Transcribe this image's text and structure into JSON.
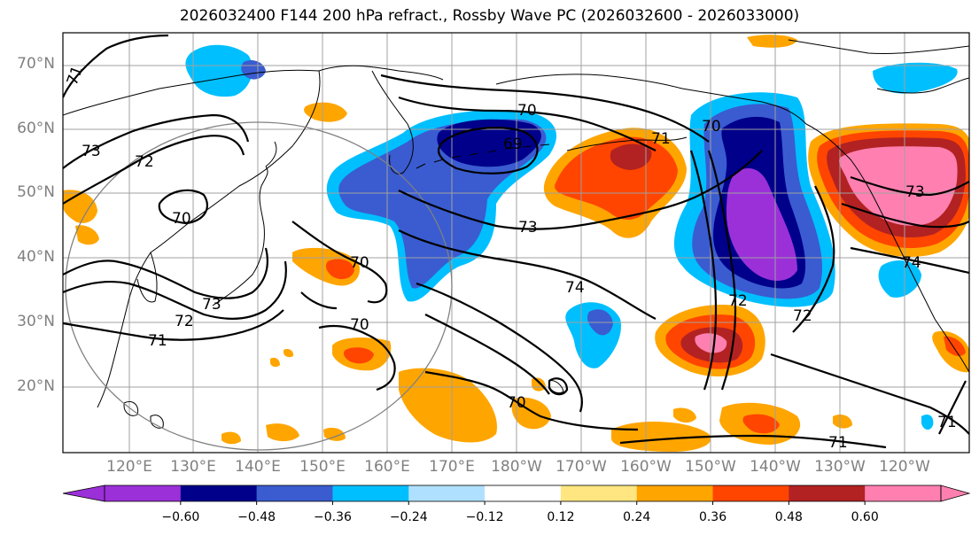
{
  "title": "2026032400 F144 200 hPa refract., Rossby Wave PC (2026032600 - 2026033000)",
  "latitude_labels": [
    "70°N",
    "60°N",
    "50°N",
    "40°N",
    "30°N",
    "20°N"
  ],
  "longitude_labels": [
    "120°E",
    "130°E",
    "140°E",
    "150°E",
    "160°E",
    "170°E",
    "180°W",
    "170°W",
    "160°W",
    "150°W",
    "140°W",
    "130°W",
    "120°W"
  ],
  "colorbar": {
    "ticks": [
      "−0.60",
      "−0.48",
      "−0.36",
      "−0.24",
      "−0.12",
      "0.12",
      "0.24",
      "0.36",
      "0.48",
      "0.60"
    ],
    "colors": [
      "#9b30d9",
      "#00008b",
      "#3a5cd0",
      "#00bfff",
      "#b0e0ff",
      "#ffffff",
      "#ffe680",
      "#ffa500",
      "#ff4500",
      "#b22222",
      "#ff80b0"
    ]
  },
  "contour_labels": [
    "71",
    "73",
    "72",
    "70",
    "69",
    "70",
    "71",
    "70",
    "73",
    "74",
    "70",
    "72",
    "73",
    "71",
    "70",
    "72",
    "72",
    "73",
    "74",
    "71",
    "71",
    "70"
  ]
}
